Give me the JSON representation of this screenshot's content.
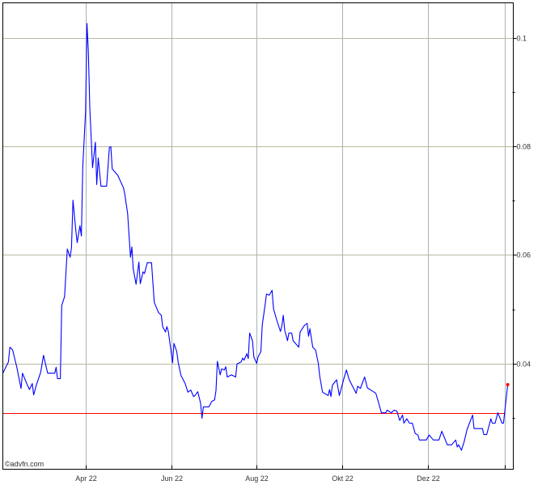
{
  "chart_data": {
    "type": "line",
    "title": "",
    "xlabel": "",
    "ylabel": "",
    "xlim": [
      "2022-02-01",
      "2023-01-31"
    ],
    "ylim": [
      0.0205,
      0.1065
    ],
    "grid": true,
    "x_ticks": [
      {
        "date": "2022-04-01",
        "label": "Apr 22"
      },
      {
        "date": "2022-06-01",
        "label": "Jun 22"
      },
      {
        "date": "2022-08-01",
        "label": "Aug 22"
      },
      {
        "date": "2022-10-01",
        "label": "Okt 22"
      },
      {
        "date": "2022-12-01",
        "label": "Dez 22"
      },
      {
        "date": "2023-01-25",
        "label": ""
      }
    ],
    "y_ticks": [
      {
        "value": 0.1,
        "label": "0.1"
      },
      {
        "value": 0.08,
        "label": "0.08"
      },
      {
        "value": 0.06,
        "label": "0.06"
      },
      {
        "value": 0.04,
        "label": "0.04"
      }
    ],
    "y_minor_ticks": [
      0.09,
      0.07,
      0.05,
      0.03
    ],
    "reference_line": 0.0309,
    "colors": {
      "line": "#0000ff",
      "reference": "#ff0000",
      "last_point": "#ff0000",
      "grid_h": "#b8b8a0",
      "grid_v": "#a8b4b4"
    },
    "series": [
      {
        "points": [
          [
            "2022-02-01",
            0.0382
          ],
          [
            "2022-02-05",
            0.0403
          ],
          [
            "2022-02-06",
            0.043
          ],
          [
            "2022-02-08",
            0.0425
          ],
          [
            "2022-02-11",
            0.0393
          ],
          [
            "2022-02-14",
            0.0354
          ],
          [
            "2022-02-15",
            0.0382
          ],
          [
            "2022-02-18",
            0.0363
          ],
          [
            "2022-02-20",
            0.0352
          ],
          [
            "2022-02-22",
            0.0363
          ],
          [
            "2022-02-23",
            0.0342
          ],
          [
            "2022-02-25",
            0.0361
          ],
          [
            "2022-02-28",
            0.0384
          ],
          [
            "2022-03-02",
            0.0415
          ],
          [
            "2022-03-04",
            0.0393
          ],
          [
            "2022-03-05",
            0.0382
          ],
          [
            "2022-03-10",
            0.0382
          ],
          [
            "2022-03-11",
            0.0393
          ],
          [
            "2022-03-12",
            0.0372
          ],
          [
            "2022-03-14",
            0.0372
          ],
          [
            "2022-03-15",
            0.0507
          ],
          [
            "2022-03-17",
            0.0523
          ],
          [
            "2022-03-19",
            0.0611
          ],
          [
            "2022-03-21",
            0.0596
          ],
          [
            "2022-03-22",
            0.0614
          ],
          [
            "2022-03-23",
            0.0701
          ],
          [
            "2022-03-25",
            0.0647
          ],
          [
            "2022-03-26",
            0.0623
          ],
          [
            "2022-03-28",
            0.0654
          ],
          [
            "2022-03-29",
            0.0635
          ],
          [
            "2022-03-30",
            0.0762
          ],
          [
            "2022-04-01",
            0.0865
          ],
          [
            "2022-04-02",
            0.1027
          ],
          [
            "2022-04-03",
            0.0976
          ],
          [
            "2022-04-04",
            0.0872
          ],
          [
            "2022-04-06",
            0.0761
          ],
          [
            "2022-04-08",
            0.0808
          ],
          [
            "2022-04-09",
            0.073
          ],
          [
            "2022-04-10",
            0.0779
          ],
          [
            "2022-04-12",
            0.0727
          ],
          [
            "2022-04-16",
            0.0727
          ],
          [
            "2022-04-18",
            0.0798
          ],
          [
            "2022-04-19",
            0.08
          ],
          [
            "2022-04-20",
            0.0759
          ],
          [
            "2022-04-24",
            0.0747
          ],
          [
            "2022-04-28",
            0.0724
          ],
          [
            "2022-04-29",
            0.0712
          ],
          [
            "2022-05-01",
            0.0676
          ],
          [
            "2022-05-03",
            0.0596
          ],
          [
            "2022-05-04",
            0.0615
          ],
          [
            "2022-05-05",
            0.0574
          ],
          [
            "2022-05-07",
            0.0546
          ],
          [
            "2022-05-09",
            0.0587
          ],
          [
            "2022-05-10",
            0.0547
          ],
          [
            "2022-05-12",
            0.0569
          ],
          [
            "2022-05-13",
            0.0566
          ],
          [
            "2022-05-15",
            0.0586
          ],
          [
            "2022-05-18",
            0.0586
          ],
          [
            "2022-05-20",
            0.0513
          ],
          [
            "2022-05-23",
            0.0494
          ],
          [
            "2022-05-25",
            0.0489
          ],
          [
            "2022-05-26",
            0.0468
          ],
          [
            "2022-05-28",
            0.0458
          ],
          [
            "2022-05-29",
            0.0468
          ],
          [
            "2022-05-30",
            0.0459
          ],
          [
            "2022-06-01",
            0.0422
          ],
          [
            "2022-06-02",
            0.0401
          ],
          [
            "2022-06-03",
            0.0437
          ],
          [
            "2022-06-05",
            0.0422
          ],
          [
            "2022-06-06",
            0.0403
          ],
          [
            "2022-06-08",
            0.0378
          ],
          [
            "2022-06-11",
            0.0363
          ],
          [
            "2022-06-13",
            0.0347
          ],
          [
            "2022-06-15",
            0.0351
          ],
          [
            "2022-06-17",
            0.0339
          ],
          [
            "2022-06-18",
            0.0341
          ],
          [
            "2022-06-20",
            0.0348
          ],
          [
            "2022-06-22",
            0.0327
          ],
          [
            "2022-06-23",
            0.0299
          ],
          [
            "2022-06-24",
            0.032
          ],
          [
            "2022-06-28",
            0.032
          ],
          [
            "2022-06-30",
            0.033
          ],
          [
            "2022-07-02",
            0.0333
          ],
          [
            "2022-07-03",
            0.035
          ],
          [
            "2022-07-04",
            0.0404
          ],
          [
            "2022-07-06",
            0.0379
          ],
          [
            "2022-07-07",
            0.039
          ],
          [
            "2022-07-09",
            0.0388
          ],
          [
            "2022-07-10",
            0.0394
          ],
          [
            "2022-07-11",
            0.0375
          ],
          [
            "2022-07-14",
            0.0379
          ],
          [
            "2022-07-17",
            0.0375
          ],
          [
            "2022-07-18",
            0.0399
          ],
          [
            "2022-07-21",
            0.0403
          ],
          [
            "2022-07-22",
            0.041
          ],
          [
            "2022-07-23",
            0.0406
          ],
          [
            "2022-07-25",
            0.0418
          ],
          [
            "2022-07-26",
            0.0409
          ],
          [
            "2022-07-27",
            0.0456
          ],
          [
            "2022-07-29",
            0.0442
          ],
          [
            "2022-07-30",
            0.0412
          ],
          [
            "2022-08-01",
            0.04
          ],
          [
            "2022-08-02",
            0.0412
          ],
          [
            "2022-08-04",
            0.0422
          ],
          [
            "2022-08-05",
            0.0471
          ],
          [
            "2022-08-07",
            0.0508
          ],
          [
            "2022-08-08",
            0.0528
          ],
          [
            "2022-08-10",
            0.0526
          ],
          [
            "2022-08-12",
            0.0535
          ],
          [
            "2022-08-13",
            0.0501
          ],
          [
            "2022-08-15",
            0.0483
          ],
          [
            "2022-08-18",
            0.0459
          ],
          [
            "2022-08-19",
            0.047
          ],
          [
            "2022-08-20",
            0.0489
          ],
          [
            "2022-08-21",
            0.0462
          ],
          [
            "2022-08-23",
            0.0442
          ],
          [
            "2022-08-24",
            0.0456
          ],
          [
            "2022-08-26",
            0.0456
          ],
          [
            "2022-08-27",
            0.0442
          ],
          [
            "2022-08-31",
            0.043
          ],
          [
            "2022-09-01",
            0.0458
          ],
          [
            "2022-09-04",
            0.047
          ],
          [
            "2022-09-06",
            0.0474
          ],
          [
            "2022-09-07",
            0.045
          ],
          [
            "2022-09-08",
            0.0464
          ],
          [
            "2022-09-10",
            0.043
          ],
          [
            "2022-09-12",
            0.0425
          ],
          [
            "2022-09-14",
            0.04
          ],
          [
            "2022-09-15",
            0.0376
          ],
          [
            "2022-09-17",
            0.0347
          ],
          [
            "2022-09-21",
            0.0341
          ],
          [
            "2022-09-22",
            0.0352
          ],
          [
            "2022-09-23",
            0.0339
          ],
          [
            "2022-09-24",
            0.036
          ],
          [
            "2022-09-27",
            0.037
          ],
          [
            "2022-09-29",
            0.0341
          ],
          [
            "2022-10-02",
            0.037
          ],
          [
            "2022-10-04",
            0.0388
          ],
          [
            "2022-10-06",
            0.037
          ],
          [
            "2022-10-08",
            0.036
          ],
          [
            "2022-10-11",
            0.0345
          ],
          [
            "2022-10-12",
            0.0358
          ],
          [
            "2022-10-14",
            0.0354
          ],
          [
            "2022-10-17",
            0.0375
          ],
          [
            "2022-10-19",
            0.0355
          ],
          [
            "2022-10-22",
            0.035
          ],
          [
            "2022-10-25",
            0.0345
          ],
          [
            "2022-10-27",
            0.0327
          ],
          [
            "2022-10-29",
            0.0309
          ],
          [
            "2022-11-01",
            0.0309
          ],
          [
            "2022-11-02",
            0.0314
          ],
          [
            "2022-11-05",
            0.0309
          ],
          [
            "2022-11-07",
            0.0314
          ],
          [
            "2022-11-09",
            0.0312
          ],
          [
            "2022-11-11",
            0.0295
          ],
          [
            "2022-11-13",
            0.0305
          ],
          [
            "2022-11-14",
            0.029
          ],
          [
            "2022-11-16",
            0.0298
          ],
          [
            "2022-11-18",
            0.029
          ],
          [
            "2022-11-20",
            0.029
          ],
          [
            "2022-11-22",
            0.0271
          ],
          [
            "2022-11-24",
            0.0268
          ],
          [
            "2022-11-25",
            0.0259
          ],
          [
            "2022-11-30",
            0.0259
          ],
          [
            "2022-12-02",
            0.0268
          ],
          [
            "2022-12-05",
            0.0259
          ],
          [
            "2022-12-09",
            0.0259
          ],
          [
            "2022-12-11",
            0.0275
          ],
          [
            "2022-12-15",
            0.025
          ],
          [
            "2022-12-18",
            0.025
          ],
          [
            "2022-12-21",
            0.0259
          ],
          [
            "2022-12-22",
            0.0246
          ],
          [
            "2022-12-23",
            0.025
          ],
          [
            "2022-12-25",
            0.024
          ],
          [
            "2022-12-27",
            0.0256
          ],
          [
            "2022-12-29",
            0.0278
          ],
          [
            "2023-01-02",
            0.0305
          ],
          [
            "2023-01-03",
            0.028
          ],
          [
            "2023-01-09",
            0.028
          ],
          [
            "2023-01-10",
            0.0269
          ],
          [
            "2023-01-12",
            0.0269
          ],
          [
            "2023-01-15",
            0.0298
          ],
          [
            "2023-01-16",
            0.029
          ],
          [
            "2023-01-18",
            0.029
          ],
          [
            "2023-01-20",
            0.0309
          ],
          [
            "2023-01-23",
            0.029
          ],
          [
            "2023-01-24",
            0.029
          ],
          [
            "2023-01-27",
            0.0361
          ]
        ]
      }
    ]
  },
  "credit": "©advfn.com"
}
